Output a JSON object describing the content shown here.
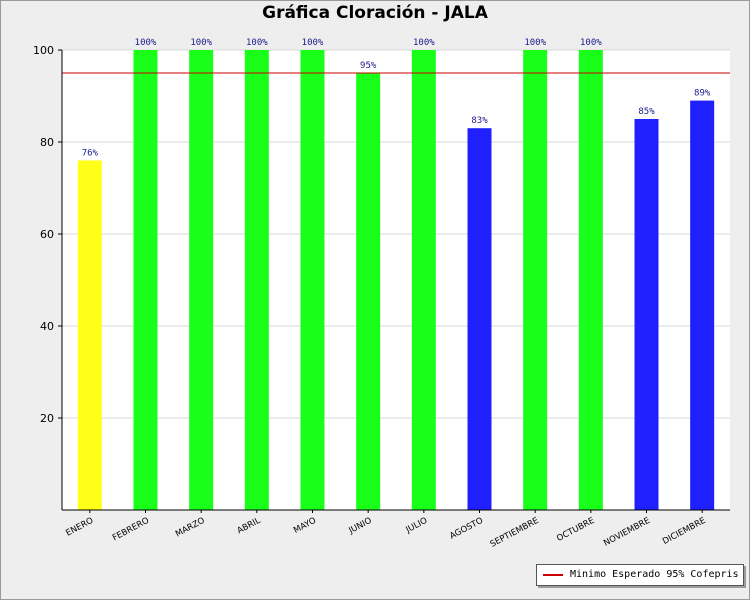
{
  "chart_data": {
    "type": "bar",
    "title": "Gráfica Cloración - JALA",
    "categories": [
      "ENERO",
      "FEBRERO",
      "MARZO",
      "ABRIL",
      "MAYO",
      "JUNIO",
      "JULIO",
      "AGOSTO",
      "SEPTIEMBRE",
      "OCTUBRE",
      "NOVIEMBRE",
      "DICIEMBRE"
    ],
    "values": [
      76,
      100,
      100,
      100,
      100,
      95,
      100,
      83,
      100,
      100,
      85,
      89
    ],
    "value_labels": [
      "76%",
      "100%",
      "100%",
      "100%",
      "100%",
      "95%",
      "100%",
      "83%",
      "100%",
      "100%",
      "85%",
      "89%"
    ],
    "bar_colors": [
      "#ffff1a",
      "#1aff1a",
      "#1aff1a",
      "#1aff1a",
      "#1aff1a",
      "#1aff1a",
      "#1aff1a",
      "#2020ff",
      "#1aff1a",
      "#1aff1a",
      "#2020ff",
      "#2020ff"
    ],
    "ylim": [
      0,
      100
    ],
    "yticks": [
      20,
      40,
      60,
      80,
      100
    ],
    "xlabel": "",
    "ylabel": "",
    "reference_line": {
      "value": 95,
      "label": "Minimo Esperado 95% Cofepris",
      "color": "#cc0000"
    },
    "legend_position": "bottom-right"
  }
}
